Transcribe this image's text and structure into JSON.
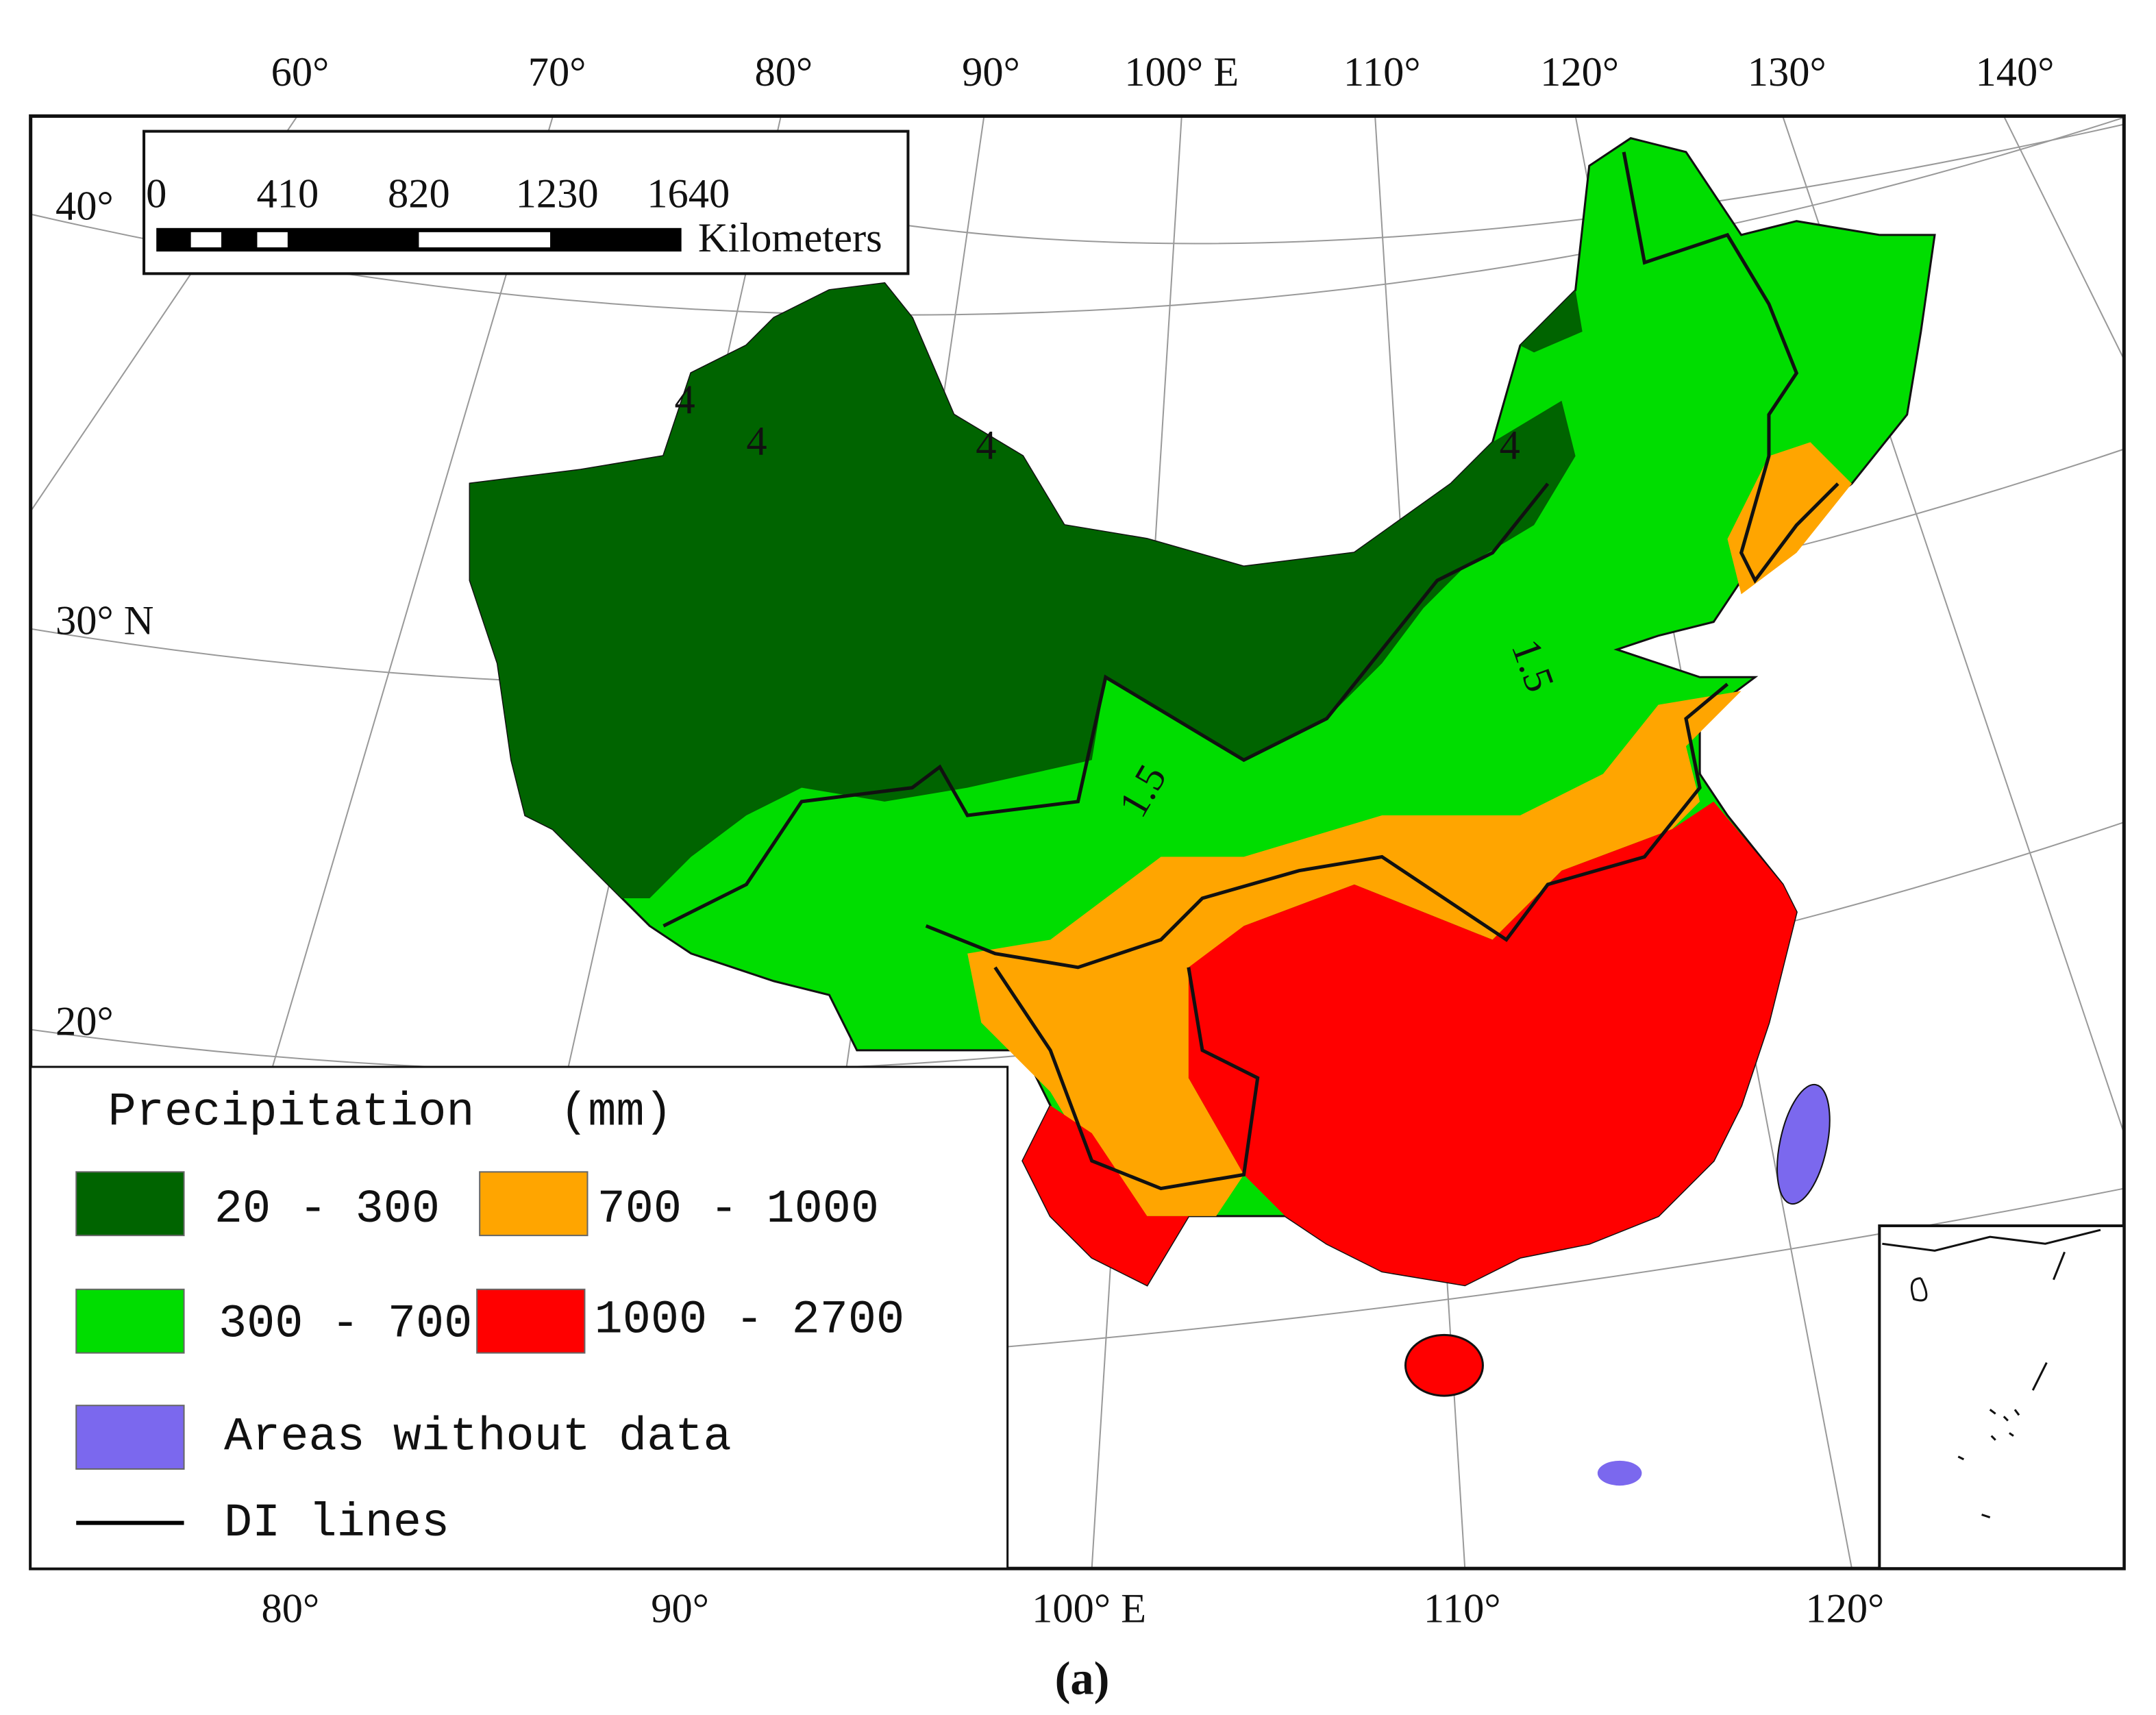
{
  "map": {
    "top_longitudes": [
      "60°",
      "70°",
      "80°",
      "90°",
      "100° E",
      "110°",
      "120°",
      "130°",
      "140°"
    ],
    "left_latitudes": [
      "40°",
      "30° N",
      "20°"
    ],
    "bottom_longitudes": [
      "80°",
      "90°",
      "100° E",
      "110°",
      "120°"
    ],
    "scale_bar": {
      "ticks": [
        "0",
        "410",
        "820",
        "1230",
        "1640"
      ],
      "unit": "Kilometers"
    },
    "contour_labels": [
      "4",
      "4",
      "4",
      "4",
      "1.5",
      "1.5"
    ],
    "legend": {
      "title": "Precipitation",
      "unit": "(mm)",
      "items": [
        {
          "label": "20 - 300",
          "color": "#006400"
        },
        {
          "label": "700 - 1000",
          "color": "#ffa500"
        },
        {
          "label": "300 - 700",
          "color": "#00dd00"
        },
        {
          "label": "1000 - 2700",
          "color": "#ff0000"
        },
        {
          "label": "Areas without data",
          "color": "#7b68ee"
        },
        {
          "label": "DI lines",
          "color": "#000000"
        }
      ]
    },
    "caption": "(a)"
  }
}
